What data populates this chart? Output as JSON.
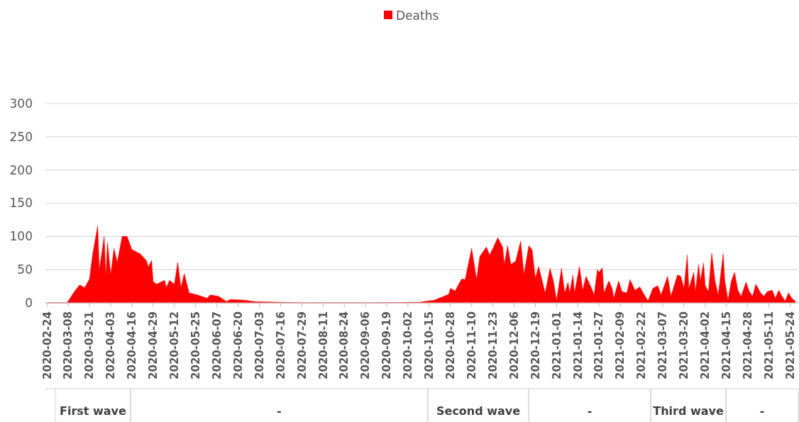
{
  "chart_data": {
    "type": "area",
    "legend": "top",
    "grid": "y",
    "xlim": [
      "2020-02-23",
      "2021-05-29"
    ],
    "xticks": [
      "2020-02-24",
      "2020-03-08",
      "2020-03-21",
      "2020-04-03",
      "2020-04-16",
      "2020-04-29",
      "2020-05-12",
      "2020-05-25",
      "2020-06-07",
      "2020-06-20",
      "2020-07-03",
      "2020-07-16",
      "2020-07-29",
      "2020-08-11",
      "2020-08-24",
      "2020-09-06",
      "2020-09-19",
      "2020-10-02",
      "2020-10-15",
      "2020-10-28",
      "2020-11-10",
      "2020-11-23",
      "2020-12-06",
      "2020-12-19",
      "2021-01-01",
      "2021-01-14",
      "2021-01-27",
      "2021-02-09",
      "2021-02-22",
      "2021-03-07",
      "2021-03-20",
      "2021-04-02",
      "2021-04-15",
      "2021-04-28",
      "2021-05-11",
      "2021-05-24"
    ],
    "ylim": [
      0,
      300
    ],
    "yticks": [
      0,
      50,
      100,
      150,
      200,
      250,
      300
    ],
    "x": [
      "2020-02-24",
      "2020-03-07",
      "2020-03-08",
      "2020-03-12",
      "2020-03-15",
      "2020-03-18",
      "2020-03-21",
      "2020-03-23",
      "2020-03-26",
      "2020-03-27",
      "2020-03-30",
      "2020-03-31",
      "2020-04-01",
      "2020-04-03",
      "2020-04-05",
      "2020-04-07",
      "2020-04-10",
      "2020-04-13",
      "2020-04-16",
      "2020-04-21",
      "2020-04-25",
      "2020-04-26",
      "2020-04-28",
      "2020-04-29",
      "2020-05-01",
      "2020-05-06",
      "2020-05-07",
      "2020-05-09",
      "2020-05-12",
      "2020-05-14",
      "2020-05-16",
      "2020-05-18",
      "2020-05-21",
      "2020-05-26",
      "2020-06-01",
      "2020-06-03",
      "2020-06-08",
      "2020-06-13",
      "2020-06-15",
      "2020-06-24",
      "2020-06-30",
      "2020-07-14",
      "2020-08-02",
      "2020-09-11",
      "2020-10-09",
      "2020-10-18",
      "2020-10-24",
      "2020-10-27",
      "2020-10-28",
      "2020-10-31",
      "2020-11-02",
      "2020-11-04",
      "2020-11-06",
      "2020-11-10",
      "2020-11-13",
      "2020-11-15",
      "2020-11-19",
      "2020-11-21",
      "2020-11-23",
      "2020-11-26",
      "2020-11-29",
      "2020-11-30",
      "2020-12-02",
      "2020-12-04",
      "2020-12-07",
      "2020-12-10",
      "2020-12-12",
      "2020-12-15",
      "2020-12-17",
      "2020-12-19",
      "2020-12-21",
      "2020-12-25",
      "2020-12-28",
      "2020-12-30",
      "2021-01-01",
      "2021-01-04",
      "2021-01-06",
      "2021-01-08",
      "2021-01-09",
      "2021-01-11",
      "2021-01-12",
      "2021-01-15",
      "2021-01-17",
      "2021-01-19",
      "2021-01-22",
      "2021-01-24",
      "2021-01-26",
      "2021-01-27",
      "2021-01-29",
      "2021-01-30",
      "2021-02-02",
      "2021-02-04",
      "2021-02-05",
      "2021-02-08",
      "2021-02-10",
      "2021-02-13",
      "2021-02-15",
      "2021-02-18",
      "2021-02-21",
      "2021-02-23",
      "2021-02-26",
      "2021-03-01",
      "2021-03-04",
      "2021-03-06",
      "2021-03-10",
      "2021-03-12",
      "2021-03-16",
      "2021-03-18",
      "2021-03-20",
      "2021-03-22",
      "2021-03-23",
      "2021-03-26",
      "2021-03-27",
      "2021-03-29",
      "2021-03-30",
      "2021-04-01",
      "2021-04-02",
      "2021-04-04",
      "2021-04-06",
      "2021-04-08",
      "2021-04-10",
      "2021-04-13",
      "2021-04-14",
      "2021-04-16",
      "2021-04-18",
      "2021-04-20",
      "2021-04-22",
      "2021-04-24",
      "2021-04-27",
      "2021-04-29",
      "2021-05-01",
      "2021-05-03",
      "2021-05-06",
      "2021-05-08",
      "2021-05-10",
      "2021-05-13",
      "2021-05-15",
      "2021-05-17",
      "2021-05-19",
      "2021-05-21",
      "2021-05-23",
      "2021-05-25",
      "2021-05-27"
    ],
    "series": [
      {
        "name": "Deaths",
        "color": "#ff0000",
        "values": [
          0,
          0,
          3,
          18,
          27,
          23,
          36,
          74,
          116,
          50,
          100,
          40,
          91,
          43,
          82,
          61,
          100,
          100,
          80,
          74,
          63,
          54,
          64,
          32,
          28,
          34,
          23,
          34,
          28,
          61,
          23,
          44,
          15,
          12,
          7,
          12,
          10,
          2,
          5,
          4,
          2,
          1,
          0,
          0,
          1,
          4,
          10,
          13,
          22,
          18,
          28,
          36,
          35,
          82,
          35,
          70,
          84,
          72,
          82,
          98,
          84,
          58,
          86,
          58,
          63,
          93,
          43,
          86,
          80,
          37,
          55,
          15,
          52,
          33,
          4,
          52,
          15,
          31,
          15,
          42,
          15,
          55,
          19,
          40,
          24,
          12,
          50,
          46,
          53,
          15,
          33,
          22,
          7,
          33,
          17,
          15,
          35,
          19,
          24,
          15,
          3,
          22,
          26,
          12,
          40,
          10,
          42,
          40,
          22,
          72,
          22,
          46,
          17,
          58,
          33,
          60,
          26,
          17,
          75,
          33,
          12,
          74,
          33,
          4,
          33,
          46,
          19,
          10,
          31,
          17,
          10,
          28,
          15,
          10,
          17,
          19,
          7,
          19,
          10,
          3,
          15,
          7,
          3
        ]
      }
    ],
    "annotations": [
      "First wave",
      "-",
      "Second wave",
      "-",
      "Third wave",
      "-"
    ]
  }
}
